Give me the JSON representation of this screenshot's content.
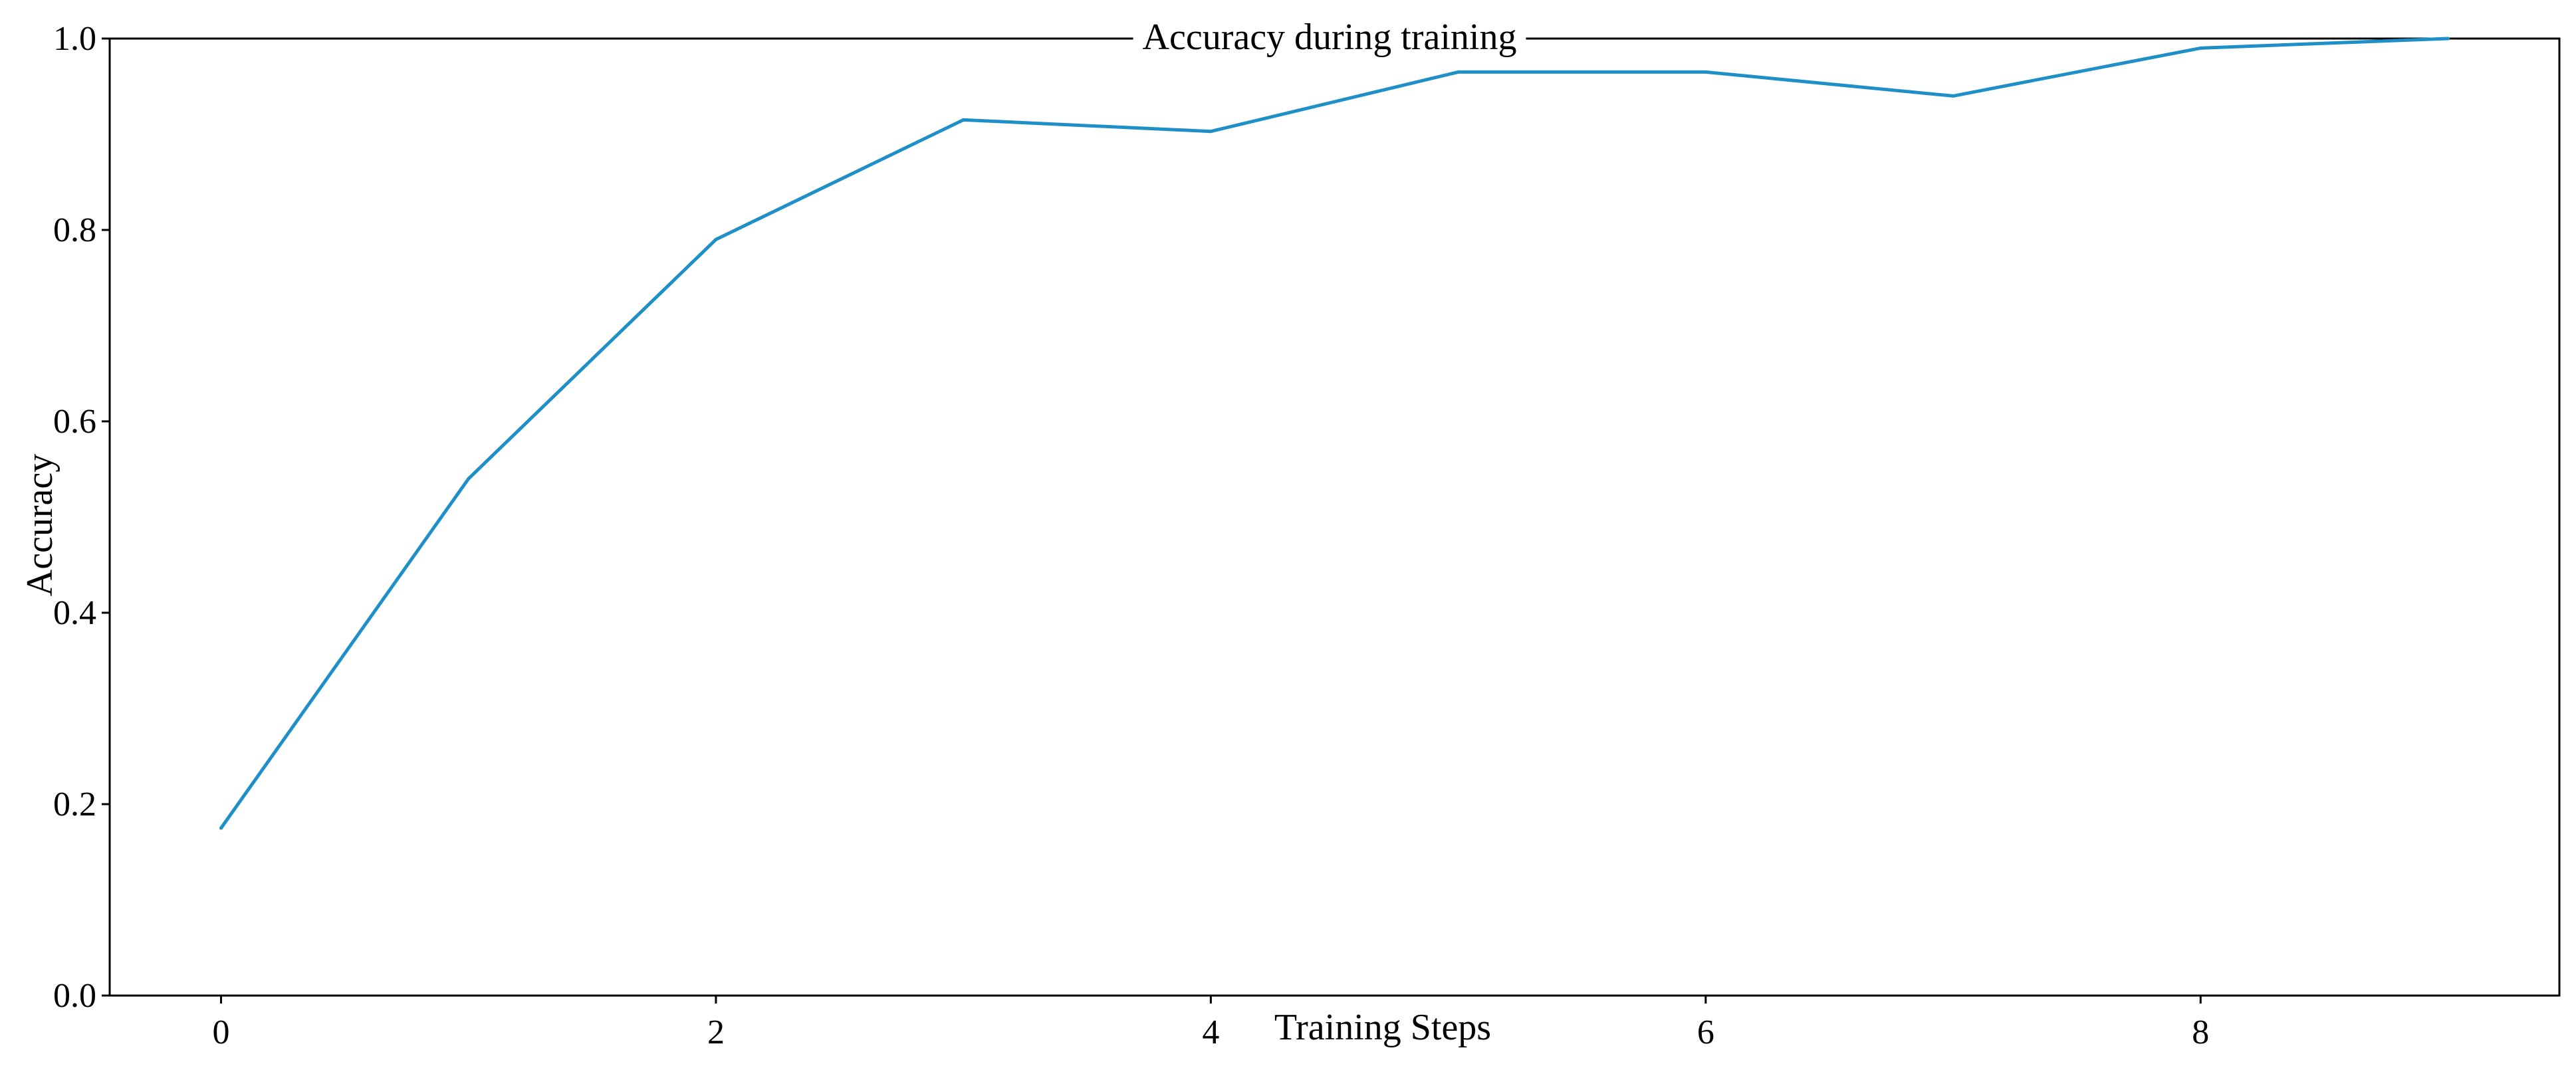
{
  "chart_data": {
    "type": "line",
    "title": "Accuracy during training",
    "xlabel": "Training Steps",
    "ylabel": "Accuracy",
    "xlim": [
      -0.45,
      9.45
    ],
    "ylim": [
      0.0,
      1.0
    ],
    "x_ticks": [
      0,
      2,
      4,
      6,
      8
    ],
    "x_tick_labels": [
      "0",
      "2",
      "4",
      "6",
      "8"
    ],
    "y_ticks": [
      0.0,
      0.2,
      0.4,
      0.6,
      0.8,
      1.0
    ],
    "y_tick_labels": [
      "0.0",
      "0.2",
      "0.4",
      "0.6",
      "0.8",
      "1.0"
    ],
    "grid": false,
    "legend": "none",
    "series": [
      {
        "color": "#1f8fc8",
        "x": [
          0,
          1,
          2,
          3,
          4,
          5,
          6,
          7,
          8,
          9
        ],
        "y": [
          0.175,
          0.54,
          0.79,
          0.915,
          0.903,
          0.965,
          0.965,
          0.94,
          0.99,
          1.0
        ]
      }
    ]
  }
}
